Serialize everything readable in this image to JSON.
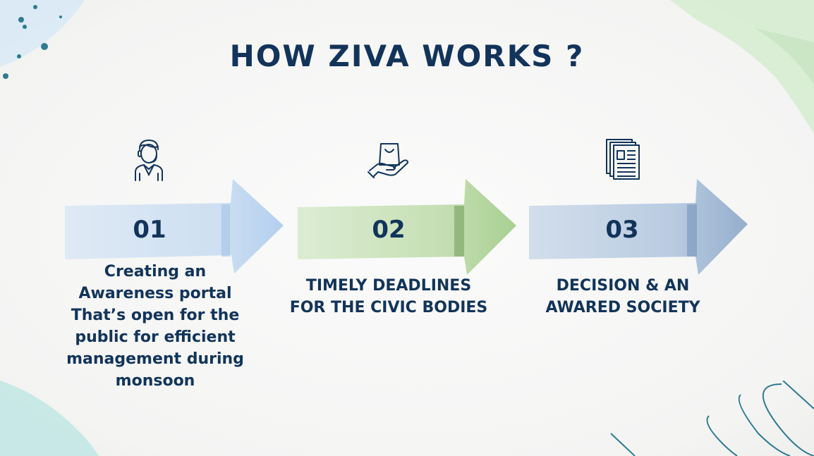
{
  "title": "HOW ZIVA WORKS ?",
  "steps": [
    {
      "number": "01",
      "icon": "customer-support-agent-icon",
      "color": "#a9c8ea",
      "lines": [
        "Creating an",
        "Awareness portal",
        "That’s open for the",
        "public for efficient",
        "management during",
        "monsoon"
      ]
    },
    {
      "number": "02",
      "icon": "hand-holding-bag-icon",
      "color": "#a9cf94",
      "lines": [
        "TIMELY DEADLINES",
        "FOR THE CIVIC BODIES"
      ]
    },
    {
      "number": "03",
      "icon": "newspaper-icon",
      "color": "#8fa9c9",
      "lines": [
        "DECISION & AN",
        "AWARED SOCIETY"
      ]
    }
  ]
}
